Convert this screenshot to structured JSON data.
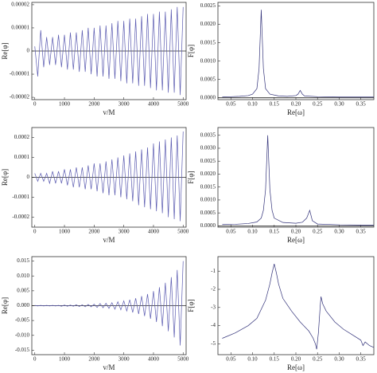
{
  "chart_data": [
    {
      "type": "line",
      "x_label": "v/M",
      "y_label": "Re[φ]",
      "color": "#5a5ab0",
      "xlim": [
        -100,
        5100
      ],
      "ylim": [
        -2.1e-05,
        2.1e-05
      ],
      "xticks": [
        0,
        1000,
        2000,
        3000,
        4000,
        5000
      ],
      "yticks": [
        2e-05,
        1e-05,
        0,
        -1e-05,
        -2e-05
      ],
      "x": [
        0,
        100,
        200,
        300,
        400,
        500,
        600,
        700,
        800,
        900,
        1000,
        1100,
        1200,
        1300,
        1400,
        1500,
        1600,
        1700,
        1800,
        1900,
        2000,
        2100,
        2200,
        2300,
        2400,
        2500,
        2600,
        2700,
        2800,
        2900,
        3000,
        3100,
        3200,
        3300,
        3400,
        3500,
        3600,
        3700,
        3800,
        3900,
        4000,
        4100,
        4200,
        4300,
        4400,
        4500,
        4600,
        4700,
        4800,
        4900,
        5000
      ],
      "values": [
        2e-06,
        -1.1e-05,
        9e-06,
        -7e-06,
        6e-06,
        -6e-06,
        6e-06,
        -6e-06,
        7e-06,
        -7e-06,
        7e-06,
        -8e-06,
        8e-06,
        -8e-06,
        8e-06,
        -9e-06,
        9e-06,
        -9e-06,
        1e-05,
        -1e-05,
        1e-05,
        -1.1e-05,
        1.1e-05,
        -1.1e-05,
        1.1e-05,
        -1.2e-05,
        1.2e-05,
        -1.2e-05,
        1.3e-05,
        -1.3e-05,
        1.3e-05,
        -1.4e-05,
        1.4e-05,
        -1.4e-05,
        1.4e-05,
        -1.5e-05,
        1.5e-05,
        -1.5e-05,
        1.6e-05,
        -1.6e-05,
        1.6e-05,
        -1.7e-05,
        1.7e-05,
        -1.7e-05,
        1.7e-05,
        -1.8e-05,
        1.8e-05,
        -1.8e-05,
        1.9e-05,
        -1.9e-05,
        1.9e-05
      ]
    },
    {
      "type": "line",
      "x_label": "Re[ω]",
      "y_label": "F[φ]",
      "color": "#33337a",
      "xlim": [
        0.02,
        0.38
      ],
      "ylim": [
        -5e-05,
        0.0026
      ],
      "xticks": [
        {
          "value": 0.05,
          "label": "0.05"
        },
        {
          "value": 0.1,
          "label": "0.10"
        },
        {
          "value": 0.15,
          "label": "0.15"
        },
        {
          "value": 0.2,
          "label": "0.20"
        },
        {
          "value": 0.25,
          "label": "0.25"
        },
        {
          "value": 0.3,
          "label": "0.30"
        },
        {
          "value": 0.35,
          "label": "0.35"
        }
      ],
      "yticks": [
        {
          "value": 0,
          "label": "0.0000"
        },
        {
          "value": 0.0005,
          "label": "0.0005"
        },
        {
          "value": 0.001,
          "label": "0.0010"
        },
        {
          "value": 0.0015,
          "label": "0.0015"
        },
        {
          "value": 0.002,
          "label": "0.0020"
        },
        {
          "value": 0.0025,
          "label": "0.0025"
        }
      ],
      "x": [
        0.03,
        0.05,
        0.07,
        0.09,
        0.1,
        0.11,
        0.115,
        0.12,
        0.125,
        0.13,
        0.14,
        0.16,
        0.18,
        0.2,
        0.205,
        0.21,
        0.215,
        0.22,
        0.25,
        0.3,
        0.35,
        0.38
      ],
      "values": [
        2e-05,
        3e-05,
        4e-05,
        6e-05,
        0.0001,
        0.00025,
        0.0008,
        0.0024,
        0.0008,
        0.00025,
        0.0001,
        5e-05,
        4e-05,
        6e-05,
        0.0001,
        0.0002,
        0.0001,
        5e-05,
        3e-05,
        2e-05,
        2e-05,
        2e-05
      ]
    },
    {
      "type": "line",
      "x_label": "v/M",
      "y_label": "Re[φ]",
      "color": "#5a5ab0",
      "xlim": [
        -100,
        5100
      ],
      "ylim": [
        -0.00025,
        0.00025
      ],
      "xticks": [
        0,
        1000,
        2000,
        3000,
        4000,
        5000
      ],
      "yticks": [
        0.0002,
        0.0001,
        0,
        -0.0001,
        -0.0002
      ],
      "x": [
        0,
        100,
        200,
        300,
        400,
        500,
        600,
        700,
        800,
        900,
        1000,
        1100,
        1200,
        1300,
        1400,
        1500,
        1600,
        1700,
        1800,
        1900,
        2000,
        2100,
        2200,
        2300,
        2400,
        2500,
        2600,
        2700,
        2800,
        2900,
        3000,
        3100,
        3200,
        3300,
        3400,
        3500,
        3600,
        3700,
        3800,
        3900,
        4000,
        4100,
        4200,
        4300,
        4400,
        4500,
        4600,
        4700,
        4800,
        4900,
        5000
      ],
      "values": [
        2e-05,
        -2e-05,
        2e-05,
        -2e-05,
        2e-05,
        -3e-05,
        3e-05,
        -3e-05,
        3e-05,
        -3e-05,
        4e-05,
        -4e-05,
        4e-05,
        -5e-05,
        5e-05,
        -5e-05,
        5e-05,
        -6e-05,
        6e-05,
        -6e-05,
        7e-05,
        -7e-05,
        7e-05,
        -8e-05,
        8e-05,
        -9e-05,
        9e-05,
        -9e-05,
        0.0001,
        -0.0001,
        0.00011,
        -0.00011,
        0.00012,
        -0.00012,
        0.00013,
        -0.00014,
        0.00014,
        -0.00015,
        0.00015,
        -0.00016,
        0.00017,
        -0.00017,
        0.00018,
        -0.00018,
        0.00019,
        -0.0002,
        0.0002,
        -0.00021,
        0.00021,
        -0.00022,
        0.00023
      ]
    },
    {
      "type": "line",
      "x_label": "Re[ω]",
      "y_label": "F[φ]",
      "color": "#33337a",
      "xlim": [
        0.02,
        0.38
      ],
      "ylim": [
        -5e-05,
        0.0038
      ],
      "xticks": [
        {
          "value": 0.05,
          "label": "0.05"
        },
        {
          "value": 0.1,
          "label": "0.10"
        },
        {
          "value": 0.15,
          "label": "0.15"
        },
        {
          "value": 0.2,
          "label": "0.20"
        },
        {
          "value": 0.25,
          "label": "0.25"
        },
        {
          "value": 0.3,
          "label": "0.30"
        },
        {
          "value": 0.35,
          "label": "0.35"
        }
      ],
      "yticks": [
        {
          "value": 0,
          "label": "0.0000"
        },
        {
          "value": 0.0005,
          "label": "0.0005"
        },
        {
          "value": 0.001,
          "label": "0.0010"
        },
        {
          "value": 0.0015,
          "label": "0.0015"
        },
        {
          "value": 0.002,
          "label": "0.0020"
        },
        {
          "value": 0.0025,
          "label": "0.0025"
        },
        {
          "value": 0.003,
          "label": "0.0030"
        },
        {
          "value": 0.0035,
          "label": "0.0035"
        }
      ],
      "x": [
        0.03,
        0.06,
        0.09,
        0.11,
        0.12,
        0.125,
        0.13,
        0.135,
        0.14,
        0.145,
        0.15,
        0.17,
        0.2,
        0.215,
        0.225,
        0.232,
        0.238,
        0.25,
        0.3,
        0.35,
        0.38
      ],
      "values": [
        5e-05,
        6e-05,
        9e-05,
        0.00015,
        0.0003,
        0.0006,
        0.0014,
        0.0035,
        0.0014,
        0.0006,
        0.0003,
        0.00013,
        0.0001,
        0.00014,
        0.0003,
        0.0006,
        0.0002,
        7e-05,
        4e-05,
        3e-05,
        3e-05
      ]
    },
    {
      "type": "line",
      "x_label": "v/M",
      "y_label": "Re[φ]",
      "color": "#5a5ab0",
      "xlim": [
        -100,
        5100
      ],
      "ylim": [
        -0.0165,
        0.0165
      ],
      "xticks": [
        0,
        1000,
        2000,
        3000,
        4000,
        5000
      ],
      "yticks": [
        0.015,
        {
          "value": 0.01,
          "label": "0.010"
        },
        0.005,
        {
          "value": 0,
          "label": "0.000"
        },
        -0.005,
        {
          "value": -0.01,
          "label": "-0.010"
        },
        -0.015
      ],
      "x": [
        0,
        100,
        200,
        300,
        400,
        500,
        600,
        700,
        800,
        900,
        1000,
        1100,
        1200,
        1300,
        1400,
        1500,
        1600,
        1700,
        1800,
        1900,
        2000,
        2100,
        2200,
        2300,
        2400,
        2500,
        2600,
        2700,
        2800,
        2900,
        3000,
        3100,
        3200,
        3300,
        3400,
        3500,
        3600,
        3700,
        3800,
        3900,
        4000,
        4100,
        4200,
        4300,
        4400,
        4500,
        4600,
        4700,
        4800,
        4900,
        5000
      ],
      "values": [
        0.0001,
        -0.0001,
        0.0001,
        -0.0001,
        0.0001,
        -0.0001,
        0.0001,
        -0.0001,
        0.0001,
        -0.0002,
        0.0002,
        -0.0002,
        0.0002,
        -0.0002,
        0.0003,
        -0.0003,
        0.0003,
        -0.0004,
        0.0004,
        -0.0004,
        0.0005,
        -0.0006,
        0.0007,
        -0.0007,
        0.0008,
        -0.0009,
        0.001,
        -0.0012,
        0.0013,
        -0.0014,
        0.0016,
        -0.0018,
        0.002,
        -0.0023,
        0.0025,
        -0.0028,
        0.0032,
        -0.0035,
        0.0039,
        -0.0044,
        0.0049,
        -0.0055,
        0.0062,
        -0.0069,
        0.0077,
        -0.0086,
        0.0096,
        -0.0107,
        0.012,
        -0.0134,
        0.015
      ]
    },
    {
      "type": "line",
      "x_label": "Re[ω]",
      "y_label": "F[φ]",
      "color": "#33337a",
      "xlim": [
        0.02,
        0.38
      ],
      "ylim": [
        -5.6,
        -0.2
      ],
      "xticks": [
        {
          "value": 0.05,
          "label": "0.05"
        },
        {
          "value": 0.1,
          "label": "0.10"
        },
        {
          "value": 0.15,
          "label": "0.15"
        },
        {
          "value": 0.2,
          "label": "0.20"
        },
        {
          "value": 0.25,
          "label": "0.25"
        },
        {
          "value": 0.3,
          "label": "0.30"
        },
        {
          "value": 0.35,
          "label": "0.35"
        }
      ],
      "yticks": [
        -1,
        -2,
        -3,
        -4,
        -5
      ],
      "x": [
        0.03,
        0.06,
        0.09,
        0.11,
        0.13,
        0.14,
        0.145,
        0.15,
        0.155,
        0.16,
        0.17,
        0.19,
        0.21,
        0.23,
        0.24,
        0.245,
        0.248,
        0.252,
        0.256,
        0.258,
        0.262,
        0.27,
        0.29,
        0.31,
        0.33,
        0.35,
        0.355,
        0.36,
        0.37,
        0.38
      ],
      "values": [
        -4.7,
        -4.4,
        -4.0,
        -3.6,
        -2.6,
        -1.7,
        -1.1,
        -0.6,
        -1.1,
        -1.7,
        -2.5,
        -3.2,
        -3.8,
        -4.3,
        -4.7,
        -5.0,
        -5.3,
        -4.4,
        -3.0,
        -2.4,
        -2.8,
        -3.2,
        -3.8,
        -4.2,
        -4.5,
        -4.8,
        -5.1,
        -4.9,
        -5.1,
        -5.2
      ]
    }
  ]
}
